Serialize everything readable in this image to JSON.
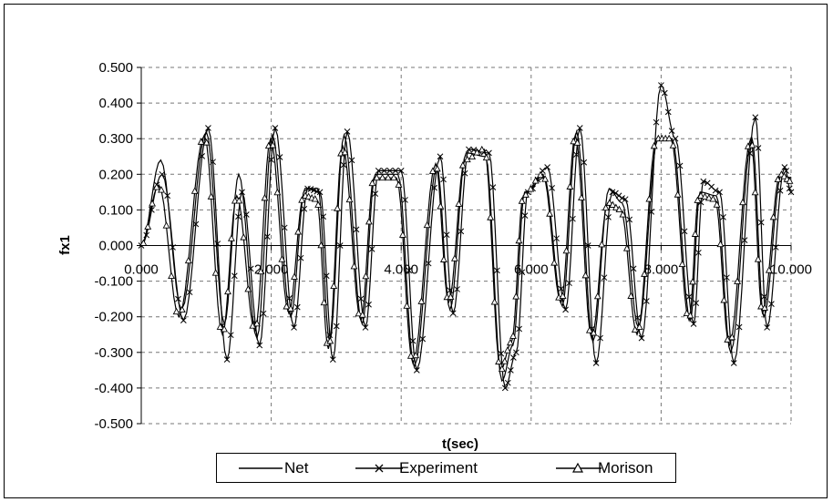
{
  "chart_data": {
    "type": "line",
    "title": "",
    "xlabel": "t(sec)",
    "ylabel": "fx1",
    "xlim": [
      0,
      10
    ],
    "ylim": [
      -0.5,
      0.5
    ],
    "x_ticks": [
      "0.000",
      "2.000",
      "4.000",
      "6.000",
      "8.000",
      "10.000"
    ],
    "y_ticks": [
      "0.500",
      "0.400",
      "0.300",
      "0.200",
      "0.100",
      "0.000",
      "-0.100",
      "-0.200",
      "-0.300",
      "-0.400",
      "-0.500"
    ],
    "grid": "dashed horizontal and vertical",
    "legend_position": "bottom",
    "series": [
      {
        "name": "Net",
        "marker": "none",
        "x": [
          0.0,
          0.3,
          0.62,
          1.0,
          1.28,
          1.5,
          1.78,
          2.02,
          2.3,
          2.52,
          2.72,
          2.9,
          3.12,
          3.4,
          3.6,
          3.95,
          4.2,
          4.55,
          4.75,
          5.0,
          5.3,
          5.55,
          5.72,
          5.9,
          6.2,
          6.48,
          6.7,
          6.95,
          7.2,
          7.4,
          7.65,
          7.95,
          8.17,
          8.45,
          8.6,
          8.85,
          9.07,
          9.4,
          9.58,
          9.85,
          10.0
        ],
        "y": [
          0.0,
          0.24,
          -0.18,
          0.32,
          -0.22,
          0.2,
          -0.26,
          0.31,
          -0.2,
          0.16,
          0.16,
          -0.27,
          0.31,
          -0.22,
          0.2,
          0.2,
          -0.34,
          0.22,
          -0.18,
          0.26,
          0.25,
          -0.38,
          -0.28,
          0.15,
          0.19,
          -0.17,
          0.32,
          -0.27,
          0.16,
          0.12,
          -0.23,
          0.3,
          0.3,
          -0.21,
          0.15,
          0.14,
          -0.3,
          0.3,
          -0.2,
          0.2,
          0.19
        ]
      },
      {
        "name": "Experiment",
        "marker": "x",
        "x": [
          0.0,
          0.32,
          0.65,
          1.03,
          1.32,
          1.55,
          1.82,
          2.06,
          2.35,
          2.56,
          2.75,
          2.95,
          3.17,
          3.45,
          3.65,
          4.0,
          4.24,
          4.6,
          4.8,
          5.04,
          5.35,
          5.6,
          5.77,
          5.95,
          6.25,
          6.53,
          6.75,
          7.0,
          7.25,
          7.45,
          7.7,
          8.0,
          8.22,
          8.5,
          8.65,
          8.9,
          9.12,
          9.45,
          9.63,
          9.9,
          10.0
        ],
        "y": [
          0.0,
          0.2,
          -0.21,
          0.33,
          -0.32,
          0.15,
          -0.28,
          0.33,
          -0.23,
          0.16,
          0.15,
          -0.32,
          0.32,
          -0.23,
          0.21,
          0.21,
          -0.35,
          0.25,
          -0.19,
          0.27,
          0.26,
          -0.4,
          -0.3,
          0.15,
          0.22,
          -0.18,
          0.33,
          -0.33,
          0.15,
          0.13,
          -0.26,
          0.45,
          0.3,
          -0.22,
          0.18,
          0.15,
          -0.33,
          0.36,
          -0.23,
          0.22,
          0.15
        ]
      },
      {
        "name": "Morison",
        "marker": "triangle",
        "x": [
          0.0,
          0.27,
          0.58,
          0.97,
          1.25,
          1.47,
          1.75,
          1.99,
          2.27,
          2.5,
          2.7,
          2.88,
          3.1,
          3.38,
          3.58,
          3.93,
          4.18,
          4.53,
          4.73,
          4.98,
          5.28,
          5.53,
          5.7,
          5.88,
          6.18,
          6.46,
          6.68,
          6.93,
          7.18,
          7.38,
          7.63,
          7.93,
          8.15,
          8.43,
          8.58,
          8.83,
          9.05,
          9.38,
          9.56,
          9.83,
          10.0
        ],
        "y": [
          0.0,
          0.17,
          -0.2,
          0.31,
          -0.25,
          0.14,
          -0.24,
          0.3,
          -0.19,
          0.14,
          0.13,
          -0.29,
          0.28,
          -0.21,
          0.19,
          0.19,
          -0.33,
          0.23,
          -0.16,
          0.24,
          0.27,
          -0.35,
          -0.27,
          0.14,
          0.2,
          -0.16,
          0.31,
          -0.26,
          0.12,
          0.1,
          -0.25,
          0.3,
          0.3,
          -0.21,
          0.14,
          0.13,
          -0.28,
          0.3,
          -0.19,
          0.2,
          0.18
        ]
      }
    ]
  }
}
